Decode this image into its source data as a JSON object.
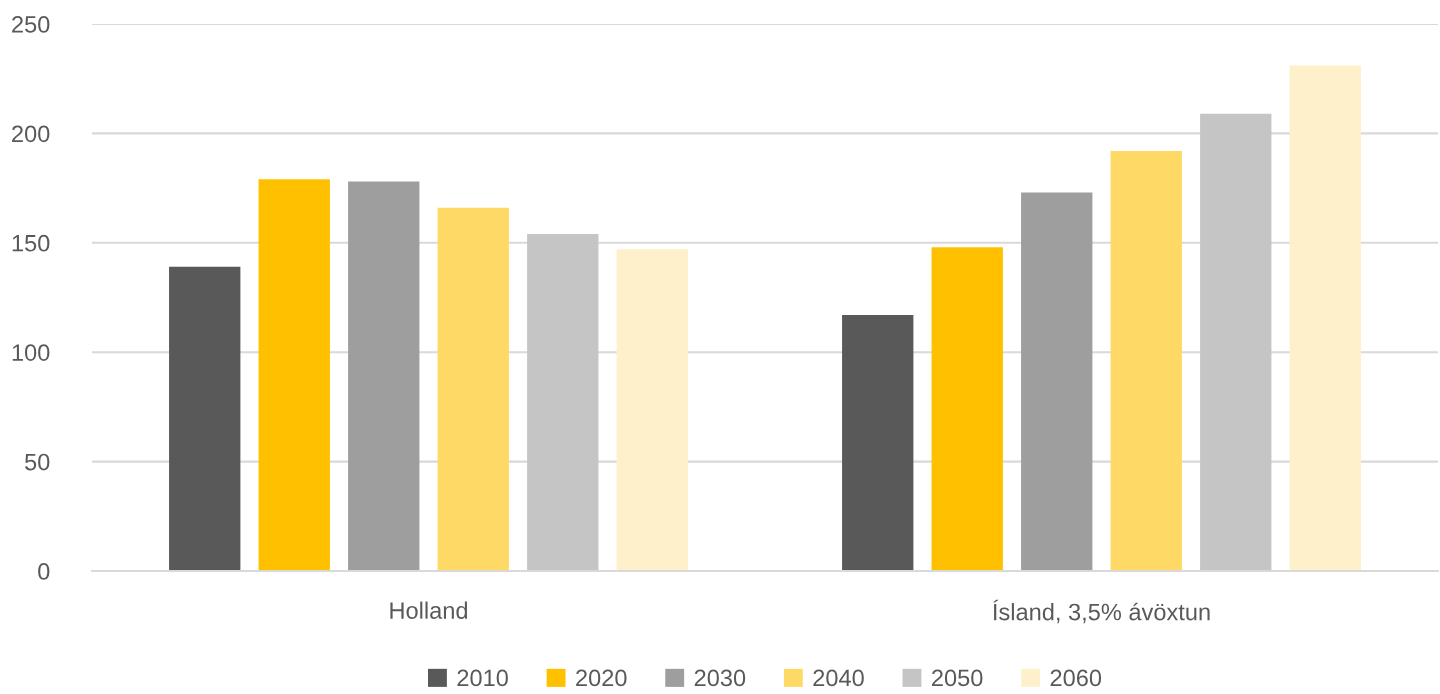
{
  "chart_data": {
    "type": "bar",
    "categories": [
      "Holland",
      "Ísland, 3,5% ávöxtun"
    ],
    "series": [
      {
        "name": "2010",
        "color": "#595959",
        "values": [
          139,
          117
        ]
      },
      {
        "name": "2020",
        "color": "#ffc000",
        "values": [
          179,
          148
        ]
      },
      {
        "name": "2030",
        "color": "#9e9e9e",
        "values": [
          178,
          173
        ]
      },
      {
        "name": "2040",
        "color": "#ffd966",
        "values": [
          166,
          192
        ]
      },
      {
        "name": "2050",
        "color": "#c5c5c5",
        "values": [
          154,
          209
        ]
      },
      {
        "name": "2060",
        "color": "#fff0cc",
        "values": [
          147,
          231
        ]
      }
    ],
    "ylim": [
      0,
      250
    ],
    "yticks": [
      0,
      50,
      100,
      150,
      200,
      250
    ],
    "grid": "y",
    "legend": "bottom"
  }
}
